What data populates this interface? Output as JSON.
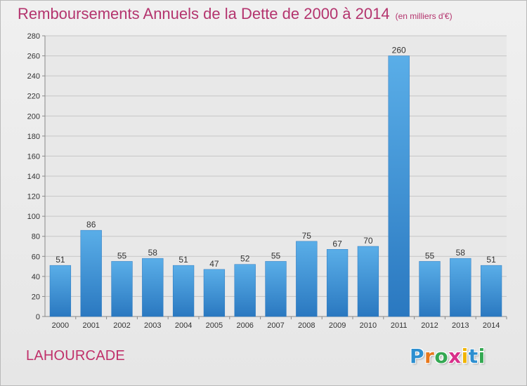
{
  "header": {
    "title": "Remboursements Annuels de la Dette de 2000 à 2014",
    "subtitle": "(en milliers d'€)"
  },
  "footer": {
    "commune": "LAHOURCADE",
    "logo_text": "Proxiti",
    "logo_letters": [
      "P",
      "r",
      "o",
      "x",
      "i",
      "t",
      "i"
    ],
    "logo_colors": [
      "#2d8fd0",
      "#e8781c",
      "#34a852",
      "#d8308a",
      "#f0b400",
      "#2d8fd0",
      "#34a852"
    ]
  },
  "chart_data": {
    "type": "bar",
    "title": "Remboursements Annuels de la Dette de 2000 à 2014",
    "categories": [
      "2000",
      "2001",
      "2002",
      "2003",
      "2004",
      "2005",
      "2006",
      "2007",
      "2008",
      "2009",
      "2010",
      "2011",
      "2012",
      "2013",
      "2014"
    ],
    "values": [
      51,
      86,
      55,
      58,
      51,
      47,
      52,
      55,
      75,
      67,
      70,
      260,
      55,
      58,
      51
    ],
    "ylim": [
      0,
      280
    ],
    "yticks": [
      0,
      20,
      40,
      60,
      80,
      100,
      120,
      140,
      160,
      180,
      200,
      220,
      240,
      260,
      280
    ],
    "grid": true,
    "bar_color": "#3a8fd6"
  }
}
